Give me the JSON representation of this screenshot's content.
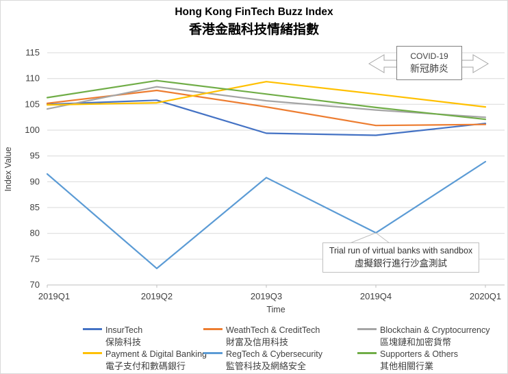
{
  "title": {
    "en": "Hong Kong FinTech Buzz Index",
    "zh": "香港金融科技情緒指數"
  },
  "chart_data": {
    "type": "line",
    "title": "Hong Kong FinTech Buzz Index 香港金融科技情緒指數",
    "xlabel": "Time",
    "ylabel": "Index Value",
    "categories": [
      "2019Q1",
      "2019Q2",
      "2019Q3",
      "2019Q4",
      "2020Q1"
    ],
    "ylim": [
      70,
      115
    ],
    "ytick_step": 5,
    "yticks": [
      70,
      75,
      80,
      85,
      90,
      95,
      100,
      105,
      110,
      115
    ],
    "grid": true,
    "legend_position": "bottom",
    "series": [
      {
        "name_en": "InsurTech",
        "name_zh": "保險科技",
        "color": "#4472C4",
        "values": [
          105.0,
          105.8,
          99.4,
          99.0,
          101.3
        ]
      },
      {
        "name_en": "WeathTech & CreditTech",
        "name_zh": "財富及信用科技",
        "color": "#ED7D31",
        "values": [
          105.2,
          107.7,
          104.5,
          100.9,
          101.1
        ]
      },
      {
        "name_en": "Blockchain & Cryptocurrency",
        "name_zh": "區塊鏈和加密貨幣",
        "color": "#A5A5A5",
        "values": [
          104.1,
          108.4,
          105.7,
          103.9,
          102.5
        ]
      },
      {
        "name_en": "Payment & Digital Banking",
        "name_zh": "電子支付和數碼銀行",
        "color": "#FFC000",
        "values": [
          104.9,
          105.3,
          109.4,
          107.0,
          104.5
        ]
      },
      {
        "name_en": "RegTech & Cybersecurity",
        "name_zh": "監管科技及網絡安全",
        "color": "#5B9BD5",
        "values": [
          91.5,
          73.2,
          90.8,
          80.1,
          93.9
        ]
      },
      {
        "name_en": "Supporters & Others",
        "name_zh": "其他相關行業",
        "color": "#70AD47",
        "values": [
          106.3,
          109.6,
          107.0,
          104.4,
          102.1
        ]
      }
    ],
    "annotations": [
      {
        "id": "covid",
        "shape": "double-arrow-box",
        "position": "top-right",
        "lines": [
          "COVID-19",
          "新冠肺炎"
        ]
      },
      {
        "id": "sandbox-callout",
        "shape": "callout-box",
        "lines": [
          "Trial run of virtual banks with sandbox",
          "虛擬銀行進行沙盒測試"
        ],
        "points_to": {
          "category": "2019Q4",
          "series": "RegTech & Cybersecurity"
        }
      }
    ]
  }
}
